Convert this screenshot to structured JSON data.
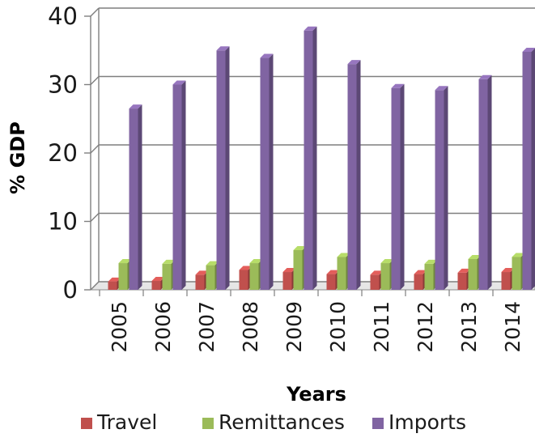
{
  "chart_data": {
    "type": "bar",
    "categories": [
      "2005",
      "2006",
      "2007",
      "2008",
      "2009",
      "2010",
      "2011",
      "2012",
      "2013",
      "2014"
    ],
    "series": [
      {
        "name": "Travel",
        "color": "#c0504d",
        "values": [
          1.2,
          1.3,
          2.2,
          2.9,
          2.6,
          2.3,
          2.2,
          2.3,
          2.5,
          2.6
        ]
      },
      {
        "name": "Remittances",
        "color": "#9bbb59",
        "values": [
          3.9,
          3.8,
          3.6,
          3.9,
          5.8,
          4.8,
          3.9,
          3.8,
          4.5,
          4.8
        ]
      },
      {
        "name": "Imports",
        "color": "#8064a2",
        "values": [
          26.5,
          30.0,
          35.0,
          33.9,
          37.9,
          33.0,
          29.5,
          29.2,
          30.8,
          34.8
        ]
      }
    ],
    "xlabel": "Years",
    "ylabel": "% GDP",
    "ylim": [
      0,
      40
    ],
    "yticks": [
      "0",
      "10",
      "20",
      "30",
      "40"
    ],
    "grid": true,
    "legend_position": "bottom"
  }
}
